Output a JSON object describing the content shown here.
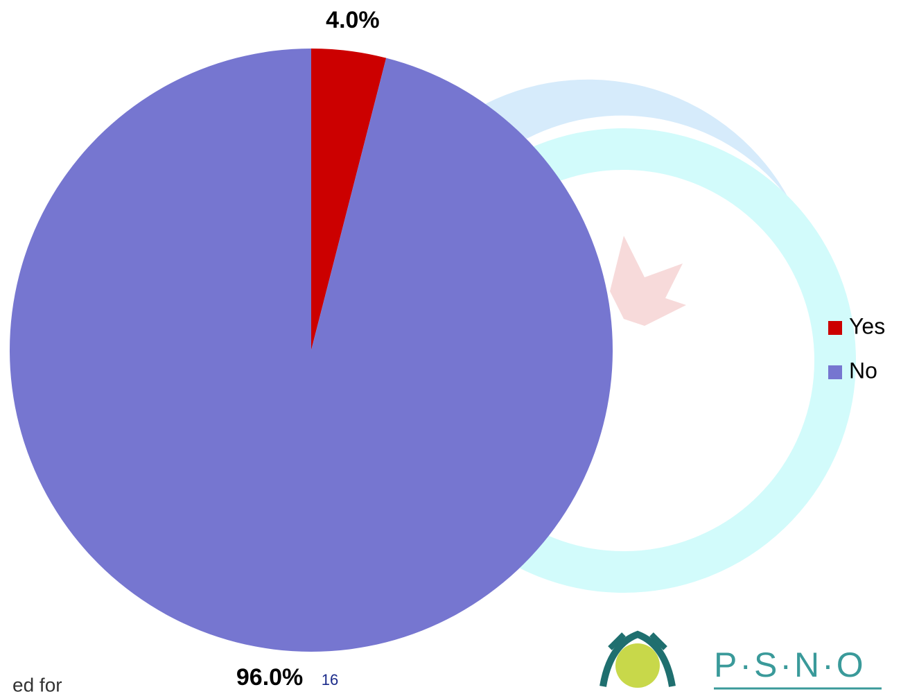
{
  "chart_data": {
    "type": "pie",
    "categories": [
      "Yes",
      "No"
    ],
    "values": [
      4,
      96
    ],
    "value_labels": [
      "4.0%",
      "96.0%"
    ],
    "colors": [
      "#cc0000",
      "#7676d0"
    ],
    "legend": "right"
  },
  "footer": {
    "page_number": "16",
    "logo_text": "P·S·N·O",
    "note": "ed for"
  }
}
